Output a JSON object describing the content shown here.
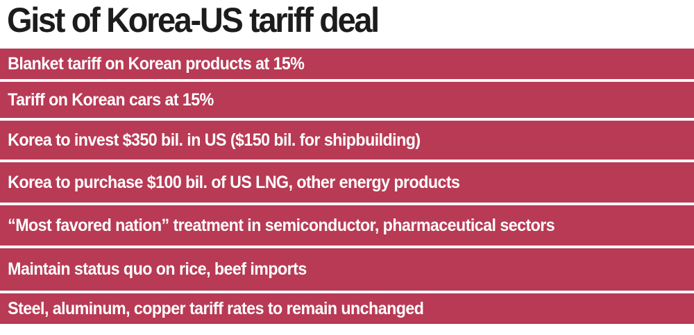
{
  "title": "Gist of Korea-US tariff deal",
  "items": [
    "Blanket tariff on Korean products at 15%",
    "Tariff on Korean cars at 15%",
    "Korea to invest $350 bil. in US ($150 bil. for shipbuilding)",
    "Korea to purchase $100 bil. of US LNG, other energy products",
    "“Most favored nation” treatment in semiconductor, pharmaceutical sectors",
    "Maintain status quo on rice, beef imports",
    "Steel, aluminum, copper tariff rates to remain unchanged"
  ],
  "colors": {
    "row_background": "#b83a55",
    "row_text": "#ffffff",
    "title_text": "#1c1c1c"
  }
}
